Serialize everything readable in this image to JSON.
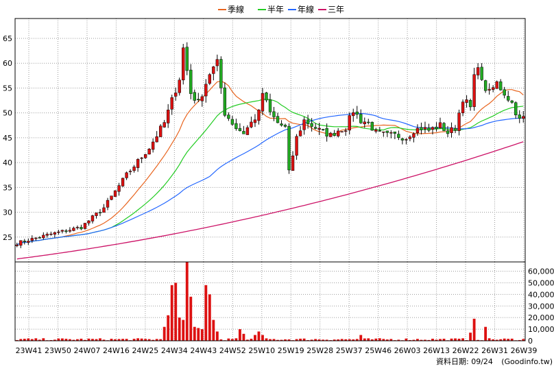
{
  "legend": {
    "items": [
      {
        "label": "季線",
        "color": "#e8641e"
      },
      {
        "label": "半年",
        "color": "#22cc22"
      },
      {
        "label": "年線",
        "color": "#2266ff"
      },
      {
        "label": "三年",
        "color": "#cc1166"
      }
    ]
  },
  "footer": {
    "date_label": "資料日期: 09/24",
    "source": "(Goodinfo.tw)"
  },
  "colors": {
    "up": "#dd1111",
    "down": "#22aa22",
    "grid": "#9a9a9a",
    "frame": "#000000",
    "volume": "#dd1111"
  },
  "chart_data": {
    "type": "candlestick",
    "period": "weekly",
    "x_ticks": [
      "23W41",
      "23W50",
      "24W07",
      "24W16",
      "24W25",
      "24W34",
      "24W43",
      "24W52",
      "25W10",
      "25W19",
      "25W28",
      "25W37",
      "25W46",
      "26W03",
      "26W13",
      "26W22",
      "26W31",
      "26W39"
    ],
    "price_axis": {
      "ylim": [
        20,
        69
      ],
      "ticks": [
        25,
        30,
        35,
        40,
        45,
        50,
        55,
        60,
        65
      ],
      "grid": true,
      "tick_side": "left"
    },
    "volume_axis": {
      "ylim": [
        0,
        68000
      ],
      "ticks": [
        0,
        10000,
        20000,
        30000,
        40000,
        50000,
        60000
      ],
      "tick_labels": [
        "0",
        "10,000",
        "20,000",
        "30,000",
        "40,000",
        "50,000",
        "60,000"
      ],
      "tick_side": "right"
    },
    "price_anchors_weekly_close": [
      [
        0,
        23.8
      ],
      [
        9,
        25.6
      ],
      [
        17,
        27.0
      ],
      [
        23,
        30.9
      ],
      [
        29,
        37.5
      ],
      [
        35,
        43.0
      ],
      [
        39,
        48.0
      ],
      [
        43,
        57.0
      ],
      [
        44,
        63.0
      ],
      [
        46,
        54.0
      ],
      [
        48,
        52.0
      ],
      [
        51,
        58.0
      ],
      [
        53,
        60.0
      ],
      [
        55,
        50.0
      ],
      [
        58,
        47.0
      ],
      [
        60,
        46.0
      ],
      [
        64,
        50.0
      ],
      [
        65,
        54.0
      ],
      [
        67,
        50.0
      ],
      [
        69,
        48.0
      ],
      [
        71,
        47.0
      ],
      [
        72,
        38.0
      ],
      [
        74,
        45.0
      ],
      [
        76,
        48.5
      ],
      [
        78,
        47.5
      ],
      [
        80,
        46.5
      ],
      [
        83,
        45.5
      ],
      [
        85,
        46.5
      ],
      [
        87,
        47.0
      ],
      [
        89,
        50.5
      ],
      [
        91,
        48.5
      ],
      [
        93,
        48.0
      ],
      [
        95,
        46.0
      ],
      [
        98,
        45.5
      ],
      [
        100,
        45.5
      ],
      [
        103,
        45.0
      ],
      [
        105,
        46.5
      ],
      [
        107,
        47.0
      ],
      [
        109,
        46.5
      ],
      [
        112,
        47.5
      ],
      [
        114,
        46.0
      ],
      [
        116,
        47.0
      ],
      [
        118,
        53.0
      ],
      [
        120,
        51.0
      ],
      [
        121,
        57.0
      ],
      [
        122,
        60.0
      ],
      [
        123,
        56.0
      ],
      [
        125,
        54.0
      ],
      [
        127,
        56.0
      ],
      [
        129,
        54.0
      ],
      [
        131,
        52.0
      ],
      [
        133,
        48.5
      ],
      [
        134,
        49.0
      ]
    ],
    "ma_series": [
      {
        "name": "季線",
        "period_weeks": 13,
        "color": "#e8641e"
      },
      {
        "name": "半年",
        "period_weeks": 26,
        "color": "#22cc22"
      },
      {
        "name": "年線",
        "period_weeks": 52,
        "color": "#2266ff"
      },
      {
        "name": "三年",
        "period_weeks": 156,
        "color": "#cc1166"
      }
    ],
    "three_year_line": {
      "start": 20.6,
      "end": 44.2
    },
    "volume_spikes": [
      [
        39,
        12000
      ],
      [
        40,
        22000
      ],
      [
        41,
        48000
      ],
      [
        42,
        50000
      ],
      [
        43,
        20000
      ],
      [
        44,
        18000
      ],
      [
        45,
        68000
      ],
      [
        46,
        38000
      ],
      [
        47,
        12000
      ],
      [
        48,
        11000
      ],
      [
        49,
        10000
      ],
      [
        50,
        48000
      ],
      [
        51,
        40000
      ],
      [
        52,
        18000
      ],
      [
        53,
        8000
      ],
      [
        59,
        10000
      ],
      [
        60,
        6000
      ],
      [
        63,
        5000
      ],
      [
        64,
        8000
      ],
      [
        65,
        5000
      ],
      [
        91,
        5000
      ],
      [
        120,
        7000
      ],
      [
        121,
        19000
      ],
      [
        124,
        12000
      ]
    ]
  }
}
